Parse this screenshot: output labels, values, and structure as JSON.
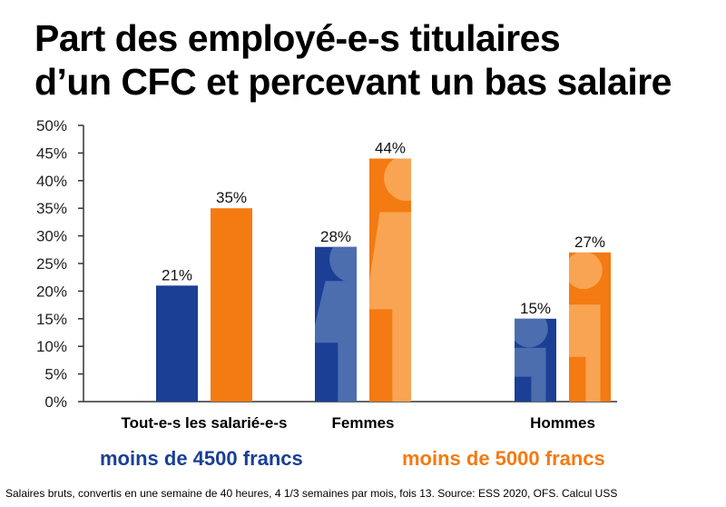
{
  "title": {
    "line1": "Part des employé-e-s titulaires",
    "line2": "d’un CFC  et percevant un bas salaire"
  },
  "legend": {
    "series_blue": "moins de 4500 francs",
    "series_orange": "moins de 5000 francs"
  },
  "footnote": "Salaires bruts, convertis en une semaine de 40 heures, 4 1/3 semaines par mois, fois 13. Source: ESS 2020, OFS. Calcul USS",
  "colors": {
    "series_blue": "#1a3f95",
    "series_orange": "#f47a12",
    "figure_on_blue": "#4c6dae",
    "figure_on_orange": "#f8a452",
    "axis": "#333333"
  },
  "chart_data": {
    "type": "bar",
    "categories": [
      "Tout-e-s les salarié-e-s",
      "Femmes",
      "Hommes"
    ],
    "series": [
      {
        "name": "moins de 4500 francs",
        "values": [
          21,
          28,
          15
        ],
        "labels": [
          "21%",
          "28%",
          "15%"
        ],
        "color": "#1a3f95"
      },
      {
        "name": "moins de 5000 francs",
        "values": [
          35,
          44,
          27
        ],
        "labels": [
          "35%",
          "44%",
          "27%"
        ],
        "color": "#f47a12"
      }
    ],
    "ylim": [
      0,
      50
    ],
    "yticks": [
      0,
      5,
      10,
      15,
      20,
      25,
      30,
      35,
      40,
      45,
      50
    ],
    "ytick_labels": [
      "0%",
      "5%",
      "10%",
      "15%",
      "20%",
      "25%",
      "30%",
      "35%",
      "40%",
      "45%",
      "50%"
    ],
    "grid": false,
    "legend_position": "bottom",
    "xlabel": "",
    "ylabel": ""
  }
}
